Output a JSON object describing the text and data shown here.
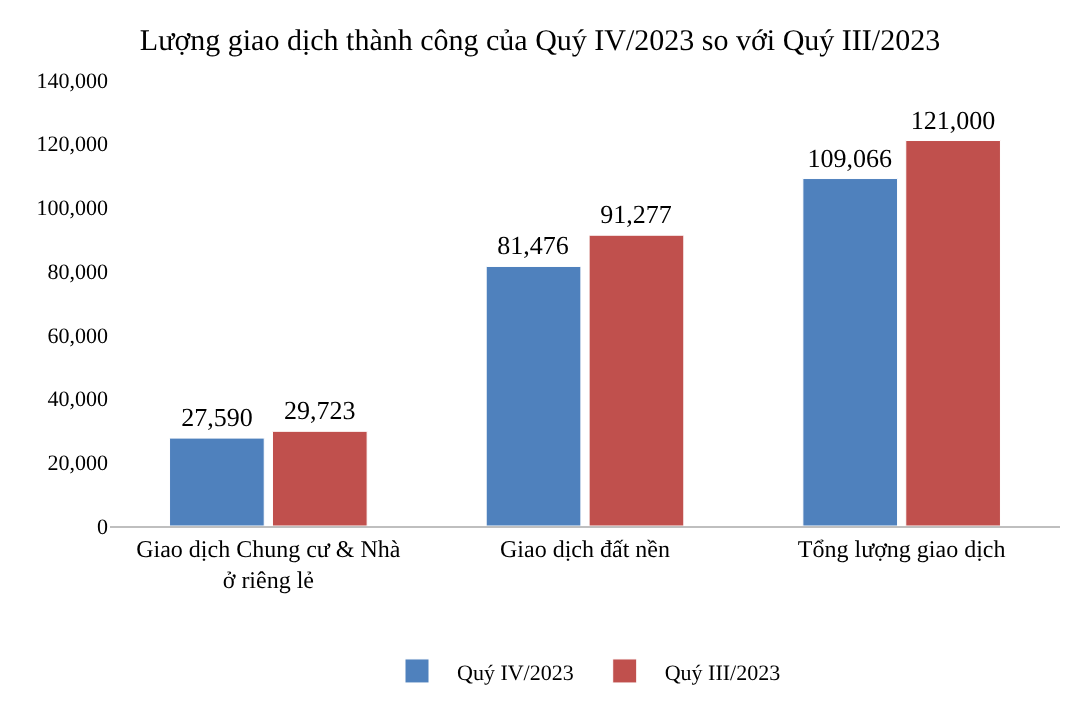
{
  "chart_data": {
    "type": "bar",
    "title": "Lượng giao dịch thành công của Quý IV/2023 so với Quý III/2023",
    "categories": [
      "Giao dịch Chung cư & Nhà ở riêng lẻ",
      "Giao dịch đất nền",
      "Tổng lượng giao dịch"
    ],
    "series": [
      {
        "name": "Quý IV/2023",
        "color": "#4f81bd",
        "values": [
          27590,
          81476,
          109066
        ],
        "value_labels": [
          "27,590",
          "81,476",
          "109,066"
        ]
      },
      {
        "name": "Quý III/2023",
        "color": "#c0504d",
        "values": [
          29723,
          91277,
          121000
        ],
        "value_labels": [
          "29,723",
          "91,277",
          "121,000"
        ]
      }
    ],
    "ylim": [
      0,
      140000
    ],
    "yticks": [
      0,
      {
        "value": 20000,
        "label": "20,000"
      },
      {
        "value": 40000,
        "label": "40,000"
      },
      {
        "value": 60000,
        "label": "60,000"
      },
      {
        "value": 80000,
        "label": "80,000"
      },
      {
        "value": 100000,
        "label": "100,000"
      },
      {
        "value": 120000,
        "label": "120,000"
      },
      {
        "value": 140000,
        "label": "140,000"
      }
    ],
    "grid": false,
    "legend": "bottom"
  }
}
